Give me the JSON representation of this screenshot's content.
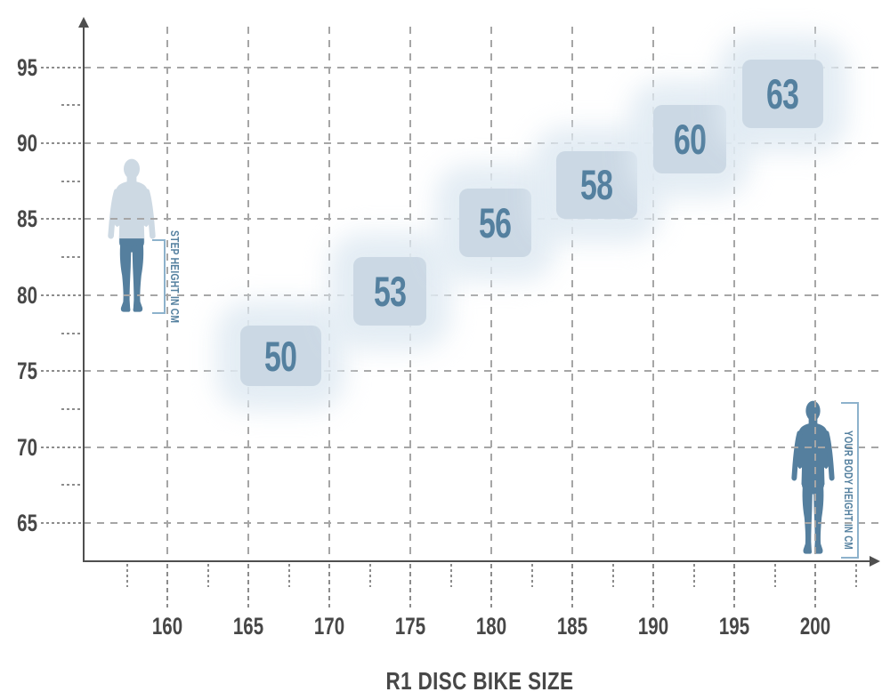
{
  "title": "R1 DISC BIKE SIZE",
  "y_axis_label": "STEP HEIGHT IN CM",
  "x_axis_label": "YOUR BODY HEIGHT IN CM",
  "colors": {
    "accent_blue": "#54809f",
    "box_fill": "#cbd8e4",
    "halo": "#e1ebf3",
    "figure_light": "#cdd9e3",
    "figure_dark": "#557f9e",
    "bracket": "#8db2cc",
    "axis": "#4f4f4f",
    "grid": "#a6a6a6",
    "label_text": "#474747"
  },
  "chart_data": {
    "type": "scatter",
    "subtype": "labeled-size-range-boxes",
    "title": "R1 DISC BIKE SIZE",
    "xlabel": "YOUR BODY HEIGHT IN CM",
    "ylabel": "STEP HEIGHT IN CM",
    "x_unit": "cm",
    "y_unit": "cm",
    "xlim": [
      155,
      203.5
    ],
    "ylim": [
      62.5,
      100
    ],
    "grid": true,
    "legend": "none",
    "x_ticks": [
      160,
      165,
      170,
      175,
      180,
      185,
      190,
      195,
      200
    ],
    "x_minor_ticks": [
      157.5,
      162.5,
      167.5,
      172.5,
      177.5,
      182.5,
      187.5,
      192.5,
      197.5,
      202.5
    ],
    "y_ticks": [
      65,
      70,
      75,
      80,
      85,
      90,
      95
    ],
    "y_minor_ticks": [
      67.5,
      72.5,
      77.5,
      82.5,
      87.5,
      92.5
    ],
    "sizes": [
      {
        "frame_size": "50",
        "body_height_cm": [
          164.5,
          169.5
        ],
        "step_height_cm": [
          74,
          78
        ]
      },
      {
        "frame_size": "53",
        "body_height_cm": [
          171.5,
          176
        ],
        "step_height_cm": [
          78,
          82.5
        ]
      },
      {
        "frame_size": "56",
        "body_height_cm": [
          178,
          182.5
        ],
        "step_height_cm": [
          82.5,
          87
        ]
      },
      {
        "frame_size": "58",
        "body_height_cm": [
          184,
          189
        ],
        "step_height_cm": [
          85,
          89.5
        ]
      },
      {
        "frame_size": "60",
        "body_height_cm": [
          190,
          194.5
        ],
        "step_height_cm": [
          88,
          92.5
        ]
      },
      {
        "frame_size": "63",
        "body_height_cm": [
          195.5,
          200.5
        ],
        "step_height_cm": [
          91,
          95.5
        ]
      }
    ]
  }
}
